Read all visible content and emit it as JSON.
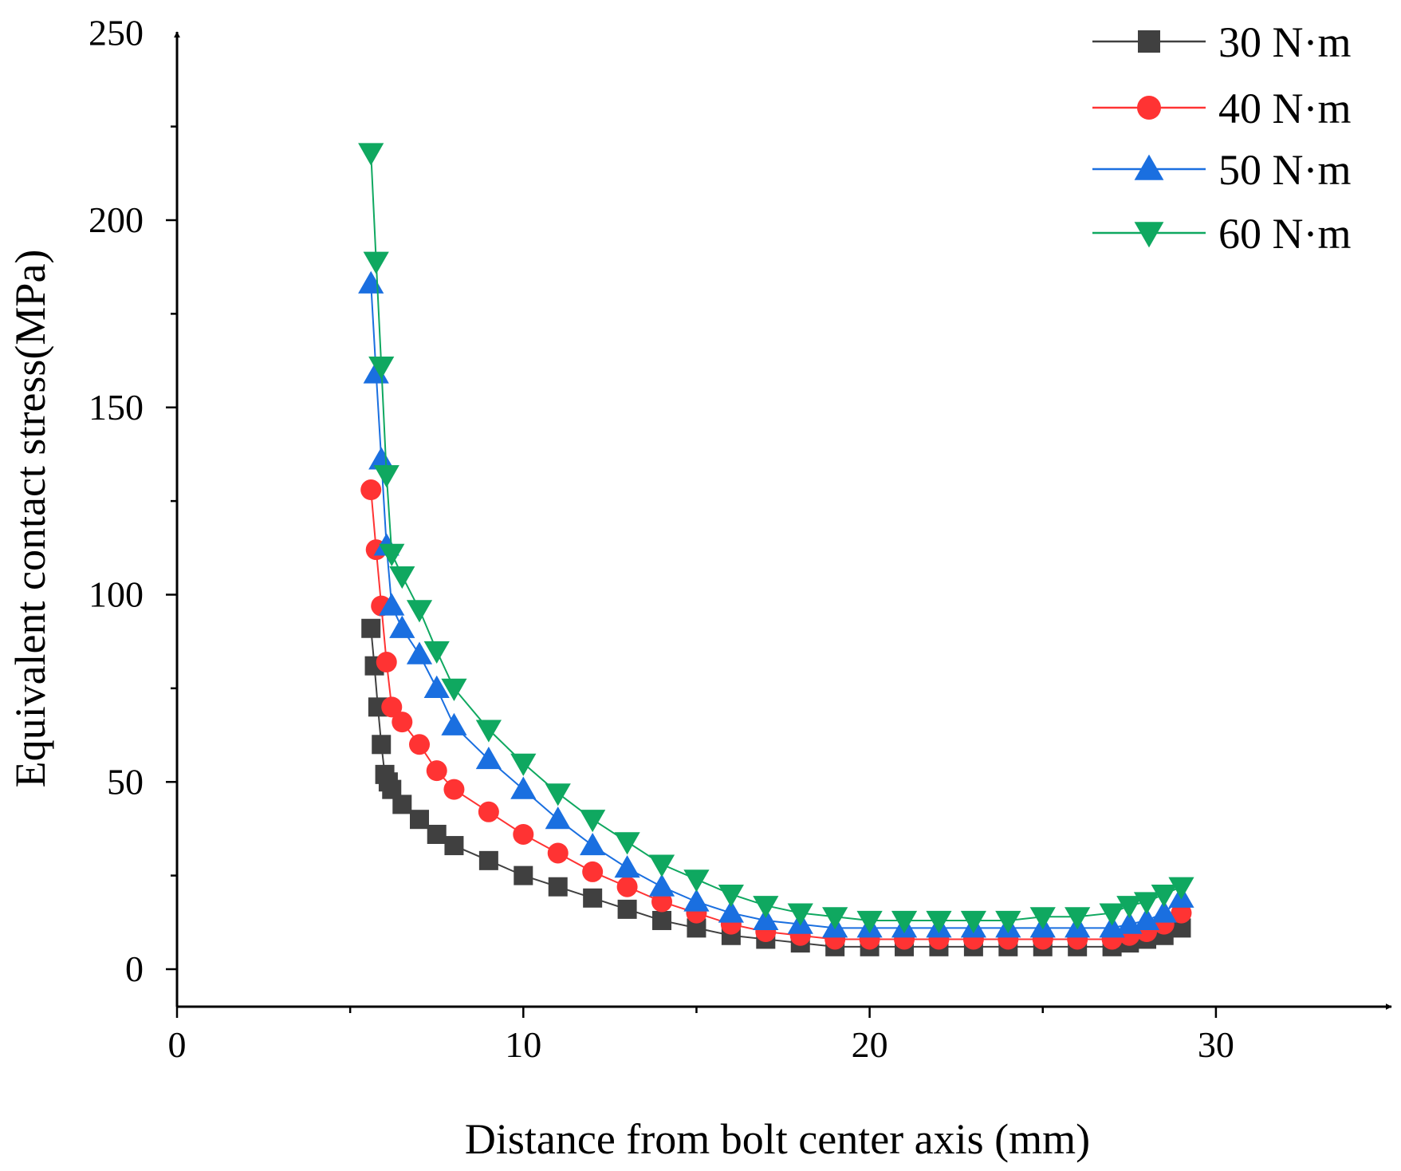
{
  "chart_data": {
    "type": "line",
    "title": "",
    "xlabel": "Distance from bolt center axis (mm)",
    "ylabel": "Equivalent contact stress(MPa)",
    "xlim": [
      0,
      35
    ],
    "ylim": [
      -10,
      250
    ],
    "xticks": [
      0,
      10,
      20,
      30
    ],
    "yticks": [
      0,
      50,
      100,
      150,
      200,
      250
    ],
    "xtick_labels": [
      "0",
      "10",
      "20",
      "30"
    ],
    "ytick_labels": [
      "0",
      "50",
      "100",
      "150",
      "200",
      "250"
    ],
    "grid": false,
    "legend_position": "top-right",
    "series": [
      {
        "name": "30 N·m",
        "color": "#404040",
        "marker": "square",
        "x": [
          5.6,
          5.7,
          5.8,
          5.9,
          6.0,
          6.1,
          6.2,
          6.5,
          7.0,
          7.5,
          8.0,
          9.0,
          10.0,
          11.0,
          12.0,
          13.0,
          14.0,
          15.0,
          16.0,
          17.0,
          18.0,
          19.0,
          20.0,
          21.0,
          22.0,
          23.0,
          24.0,
          25.0,
          26.0,
          27.0,
          27.5,
          28.0,
          28.5,
          29.0
        ],
        "y": [
          91,
          81,
          70,
          60,
          52,
          50,
          48,
          44,
          40,
          36,
          33,
          29,
          25,
          22,
          19,
          16,
          13,
          11,
          9,
          8,
          7,
          6,
          6,
          6,
          6,
          6,
          6,
          6,
          6,
          6,
          7,
          8,
          9,
          11
        ]
      },
      {
        "name": "40 N·m",
        "color": "#ff3333",
        "marker": "circle",
        "x": [
          5.6,
          5.75,
          5.9,
          6.05,
          6.2,
          6.5,
          7.0,
          7.5,
          8.0,
          9.0,
          10.0,
          11.0,
          12.0,
          13.0,
          14.0,
          15.0,
          16.0,
          17.0,
          18.0,
          19.0,
          20.0,
          21.0,
          22.0,
          23.0,
          24.0,
          25.0,
          26.0,
          27.0,
          27.5,
          28.0,
          28.5,
          29.0
        ],
        "y": [
          128,
          112,
          97,
          82,
          70,
          66,
          60,
          53,
          48,
          42,
          36,
          31,
          26,
          22,
          18,
          15,
          12,
          10,
          9,
          8,
          8,
          8,
          8,
          8,
          8,
          8,
          8,
          8,
          9,
          10,
          12,
          15
        ]
      },
      {
        "name": "50 N·m",
        "color": "#1a6fe0",
        "marker": "triangle-up",
        "x": [
          5.6,
          5.75,
          5.9,
          6.05,
          6.2,
          6.5,
          7.0,
          7.5,
          8.0,
          9.0,
          10.0,
          11.0,
          12.0,
          13.0,
          14.0,
          15.0,
          16.0,
          17.0,
          18.0,
          19.0,
          20.0,
          21.0,
          22.0,
          23.0,
          24.0,
          25.0,
          26.0,
          27.0,
          27.5,
          28.0,
          28.5,
          29.0
        ],
        "y": [
          183,
          159,
          136,
          113,
          97,
          91,
          84,
          75,
          65,
          56,
          48,
          40,
          33,
          27,
          22,
          18,
          15,
          13,
          12,
          11,
          11,
          11,
          11,
          11,
          11,
          11,
          11,
          11,
          12,
          13,
          15,
          19
        ]
      },
      {
        "name": "60 N·m",
        "color": "#0fa860",
        "marker": "triangle-down",
        "x": [
          5.6,
          5.75,
          5.9,
          6.05,
          6.2,
          6.5,
          7.0,
          7.5,
          8.0,
          9.0,
          10.0,
          11.0,
          12.0,
          13.0,
          14.0,
          15.0,
          16.0,
          17.0,
          18.0,
          19.0,
          20.0,
          21.0,
          22.0,
          23.0,
          24.0,
          25.0,
          26.0,
          27.0,
          27.5,
          28.0,
          28.5,
          29.0
        ],
        "y": [
          218,
          189,
          161,
          132,
          111,
          105,
          96,
          85,
          75,
          64,
          55,
          47,
          40,
          34,
          28,
          24,
          20,
          17,
          15,
          14,
          13,
          13,
          13,
          13,
          13,
          14,
          14,
          15,
          17,
          18,
          20,
          22
        ]
      }
    ]
  }
}
